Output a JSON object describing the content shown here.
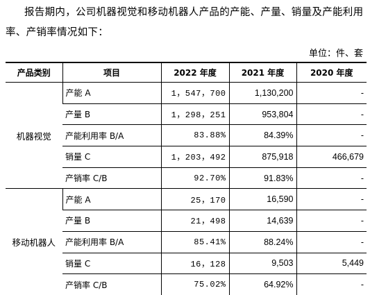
{
  "intro_text": "报告期内，公司机器视觉和移动机器人产品的产能、产量、销量及产能利用率、产销率情况如下：",
  "unit_label": "单位：件、套",
  "table": {
    "headers": [
      "产品类别",
      "项目",
      "2022 年度",
      "2021 年度",
      "2020 年度"
    ],
    "groups": [
      {
        "category": "机器视觉",
        "rows": [
          {
            "item": "产能 A",
            "y2022": "1，547，700",
            "y2021": "1,130,200",
            "y2020": "-"
          },
          {
            "item": "产量 B",
            "y2022": "1，298，251",
            "y2021": "953,804",
            "y2020": "-"
          },
          {
            "item": "产能利用率 B/A",
            "y2022": "83.88%",
            "y2021": "84.39%",
            "y2020": "-"
          },
          {
            "item": "销量 C",
            "y2022": "1，203，492",
            "y2021": "875,918",
            "y2020": "466,679"
          },
          {
            "item": "产销率 C/B",
            "y2022": "92.70%",
            "y2021": "91.83%",
            "y2020": "-"
          }
        ]
      },
      {
        "category": "移动机器人",
        "rows": [
          {
            "item": "产能 A",
            "y2022": "25，170",
            "y2021": "16,590",
            "y2020": "-"
          },
          {
            "item": "产量 B",
            "y2022": "21，498",
            "y2021": "14,639",
            "y2020": "-"
          },
          {
            "item": "产能利用率 B/A",
            "y2022": "85.41%",
            "y2021": "88.24%",
            "y2020": "-"
          },
          {
            "item": "销量 C",
            "y2022": "16，128",
            "y2021": "9,503",
            "y2020": "5,449"
          },
          {
            "item": "产销率 C/B",
            "y2022": "75.02%",
            "y2021": "64.92%",
            "y2020": "-"
          }
        ]
      }
    ]
  }
}
